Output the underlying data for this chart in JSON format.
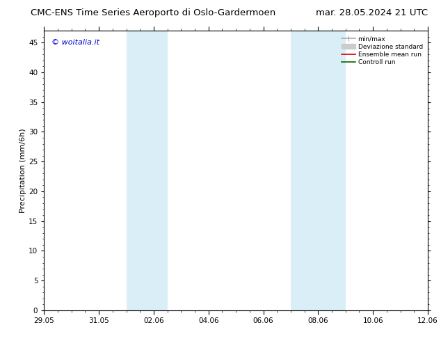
{
  "title": "CMC-ENS Time Series Aeroporto di Oslo-Gardermoen",
  "title_right": "mar. 28.05.2024 21 UTC",
  "ylabel": "Precipitation (mm/6h)",
  "watermark": "© woitalia.it",
  "xlim": [
    0,
    14
  ],
  "ylim": [
    0,
    47
  ],
  "yticks": [
    0,
    5,
    10,
    15,
    20,
    25,
    30,
    35,
    40,
    45
  ],
  "xtick_labels": [
    "29.05",
    "31.05",
    "02.06",
    "04.06",
    "06.06",
    "08.06",
    "10.06",
    "12.06"
  ],
  "xtick_positions": [
    0,
    2,
    4,
    6,
    8,
    10,
    12,
    14
  ],
  "shaded_bands": [
    {
      "x_start": 3.0,
      "x_end": 4.5,
      "color": "#daeef8"
    },
    {
      "x_start": 9.0,
      "x_end": 11.0,
      "color": "#daeef8"
    }
  ],
  "legend_items": [
    {
      "label": "min/max",
      "color": "#aaaaaa",
      "lw": 1.2
    },
    {
      "label": "Deviazione standard",
      "color": "#cccccc",
      "lw": 7
    },
    {
      "label": "Ensemble mean run",
      "color": "#cc0000",
      "lw": 1.2
    },
    {
      "label": "Controll run",
      "color": "#006600",
      "lw": 1.2
    }
  ],
  "background_color": "#ffffff",
  "plot_bg_color": "#ffffff",
  "title_fontsize": 9.5,
  "axis_fontsize": 8,
  "tick_fontsize": 7.5,
  "watermark_color": "#0000cc",
  "watermark_fontsize": 8,
  "x_total_days": 14
}
